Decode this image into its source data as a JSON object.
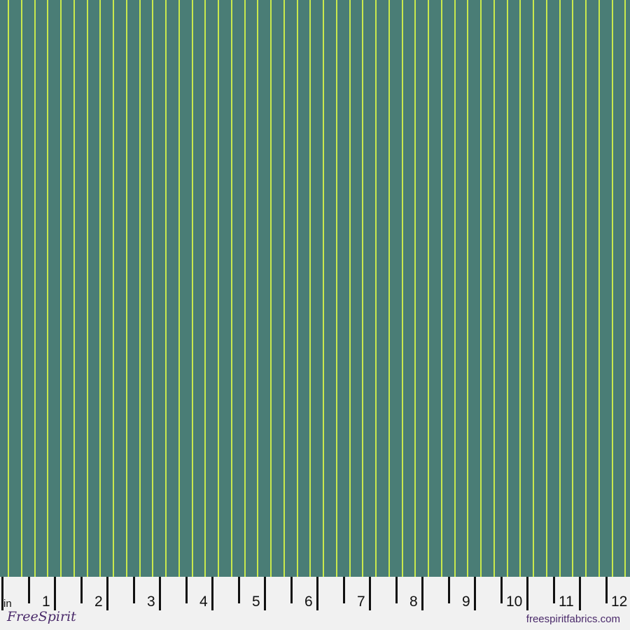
{
  "fabric": {
    "background_color": "#4a7d76",
    "stripe_color": "#c9e94c",
    "stripes_per_inch": 4
  },
  "ruler": {
    "unit": "in",
    "labels": [
      "1",
      "2",
      "3",
      "4",
      "5",
      "6",
      "7",
      "8",
      "9",
      "10",
      "11",
      "12"
    ],
    "logo_text": "FreeSpirit",
    "website": "freespiritfabrics.com"
  }
}
